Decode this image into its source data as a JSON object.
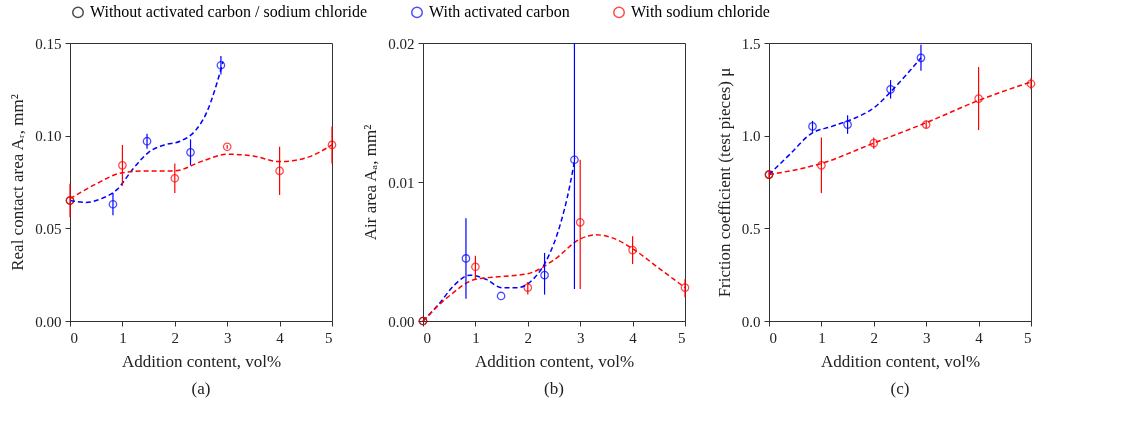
{
  "chart_data": [
    {
      "type": "scatter",
      "title": "(a)",
      "xlabel": "Addition content, vol%",
      "ylabel": "Real contact area Aᵣ, mm²",
      "marker": "circle",
      "legend": "top",
      "grid": false,
      "xlim": [
        0,
        5
      ],
      "xticks": [
        0,
        1,
        2,
        3,
        4,
        5
      ],
      "ylim": [
        0,
        0.15
      ],
      "yticks": [
        {
          "value": 0,
          "label": "0.00"
        },
        {
          "value": 0.05,
          "label": "0.05"
        },
        {
          "value": 0.1,
          "label": "0.10"
        },
        {
          "value": 0.15,
          "label": "0.15"
        }
      ],
      "series": [
        {
          "name": "Without activated carbon / sodium chloride",
          "color": "#000000",
          "x": [
            0
          ],
          "values": [
            0.065
          ]
        },
        {
          "name": "With activated carbon",
          "color": "#0000ff",
          "x": [
            0.82,
            1.47,
            2.3,
            2.88
          ],
          "values": [
            0.063,
            0.097,
            0.091,
            0.138
          ],
          "errors": [
            0.006,
            0.004,
            0.007,
            0.005
          ]
        },
        {
          "name": "With sodium chloride",
          "color": "#ff0000",
          "x": [
            0,
            1,
            2,
            3,
            4,
            5
          ],
          "values": [
            0.065,
            0.084,
            0.077,
            0.094,
            0.081,
            0.095
          ],
          "errors": [
            0.009,
            0.011,
            0.008,
            0.001,
            0.013,
            0.01
          ]
        },
        {
          "type": "line",
          "color": "#0000ff",
          "line_style": "dashed",
          "marker": "none",
          "x": [
            0,
            0.3,
            0.6,
            0.9,
            1.2,
            1.5,
            1.8,
            2.1,
            2.4,
            2.6,
            2.8,
            2.92
          ],
          "values": [
            0.065,
            0.064,
            0.066,
            0.071,
            0.082,
            0.091,
            0.095,
            0.097,
            0.103,
            0.112,
            0.128,
            0.14
          ]
        },
        {
          "type": "line",
          "color": "#ff0000",
          "line_style": "dashed",
          "marker": "none",
          "x": [
            0,
            0.5,
            1,
            1.5,
            2,
            2.5,
            3,
            3.5,
            4,
            4.5,
            5
          ],
          "values": [
            0.066,
            0.074,
            0.08,
            0.081,
            0.081,
            0.086,
            0.09,
            0.089,
            0.086,
            0.088,
            0.095
          ]
        }
      ]
    },
    {
      "type": "scatter",
      "title": "(b)",
      "xlabel": "Addition content, vol%",
      "ylabel": "Air area Aₐ, mm²",
      "marker": "circle",
      "legend": "top",
      "grid": false,
      "xlim": [
        0,
        5
      ],
      "xticks": [
        0,
        1,
        2,
        3,
        4,
        5
      ],
      "ylim": [
        0,
        0.02
      ],
      "yticks": [
        {
          "value": 0,
          "label": "0.00"
        },
        {
          "value": 0.01,
          "label": "0.01"
        },
        {
          "value": 0.02,
          "label": "0.02"
        }
      ],
      "series": [
        {
          "name": "Without activated carbon / sodium chloride",
          "color": "#000000",
          "x": [
            0
          ],
          "values": [
            0
          ]
        },
        {
          "name": "With activated carbon",
          "color": "#0000ff",
          "x": [
            0.82,
            1.49,
            2.32,
            2.89
          ],
          "values": [
            0.0045,
            0.0018,
            0.0033,
            0.0116
          ],
          "errors": [
            [
              0.0016,
              0.0074
            ],
            null,
            [
              0.0019,
              0.0049
            ],
            [
              0.0023,
              0.02
            ]
          ]
        },
        {
          "name": "With sodium chloride",
          "color": "#ff0000",
          "x": [
            0,
            1,
            2,
            3,
            4,
            5
          ],
          "values": [
            0,
            0.0039,
            0.0024,
            0.0071,
            0.0051,
            0.0024
          ],
          "errors": [
            null,
            [
              0.003,
              0.0047
            ],
            [
              0.0019,
              0.0028
            ],
            [
              0.0023,
              0.0116
            ],
            [
              0.0041,
              0.0061
            ],
            [
              0.0017,
              0.003
            ]
          ]
        },
        {
          "type": "line",
          "color": "#0000ff",
          "line_style": "dashed",
          "marker": "none",
          "x": [
            0,
            0.3,
            0.6,
            0.9,
            1.2,
            1.5,
            1.8,
            2.1,
            2.4,
            2.6,
            2.8,
            2.9
          ],
          "values": [
            0,
            0.0012,
            0.0026,
            0.0033,
            0.003,
            0.0024,
            0.0024,
            0.003,
            0.0047,
            0.0067,
            0.0097,
            0.0117
          ]
        },
        {
          "type": "line",
          "color": "#ff0000",
          "line_style": "dashed",
          "marker": "none",
          "x": [
            0,
            0.5,
            1,
            1.5,
            2,
            2.5,
            3,
            3.3,
            3.6,
            4,
            4.5,
            5
          ],
          "values": [
            0,
            0.0018,
            0.003,
            0.0032,
            0.0034,
            0.0044,
            0.0059,
            0.0062,
            0.006,
            0.0052,
            0.0038,
            0.0024
          ]
        }
      ]
    },
    {
      "type": "scatter",
      "title": "(c)",
      "xlabel": "Addition content, vol%",
      "ylabel": "Friction coefficient (test pieces) μ",
      "marker": "circle",
      "legend": "top",
      "grid": false,
      "xlim": [
        0,
        5
      ],
      "xticks": [
        0,
        1,
        2,
        3,
        4,
        5
      ],
      "ylim": [
        0,
        1.5
      ],
      "yticks": [
        {
          "value": 0,
          "label": "0.0"
        },
        {
          "value": 0.5,
          "label": "0.5"
        },
        {
          "value": 1,
          "label": "1.0"
        },
        {
          "value": 1.5,
          "label": "1.5"
        }
      ],
      "series": [
        {
          "name": "Without activated carbon / sodium chloride",
          "color": "#000000",
          "x": [
            0
          ],
          "values": [
            0.79
          ]
        },
        {
          "name": "With activated carbon",
          "color": "#0000ff",
          "x": [
            0.83,
            1.5,
            2.32,
            2.9
          ],
          "values": [
            1.05,
            1.06,
            1.25,
            1.42
          ],
          "errors": [
            0.03,
            0.05,
            0.05,
            0.07
          ]
        },
        {
          "name": "With sodium chloride",
          "color": "#ff0000",
          "x": [
            0,
            1,
            2,
            3,
            4,
            5
          ],
          "values": [
            0.79,
            0.84,
            0.96,
            1.06,
            1.2,
            1.28
          ],
          "errors": [
            0.02,
            0.15,
            0.03,
            0.02,
            [
              1.03,
              1.37
            ],
            0.03
          ]
        },
        {
          "type": "line",
          "color": "#0000ff",
          "line_style": "dashed",
          "marker": "none",
          "x": [
            0,
            0.4,
            0.8,
            1.2,
            1.6,
            2,
            2.4,
            2.9
          ],
          "values": [
            0.79,
            0.9,
            1.01,
            1.05,
            1.09,
            1.15,
            1.26,
            1.42
          ]
        },
        {
          "type": "line",
          "color": "#ff0000",
          "line_style": "dashed",
          "marker": "none",
          "x": [
            0,
            1,
            2,
            3,
            4,
            5
          ],
          "values": [
            0.79,
            0.85,
            0.96,
            1.07,
            1.19,
            1.29
          ]
        }
      ]
    }
  ]
}
